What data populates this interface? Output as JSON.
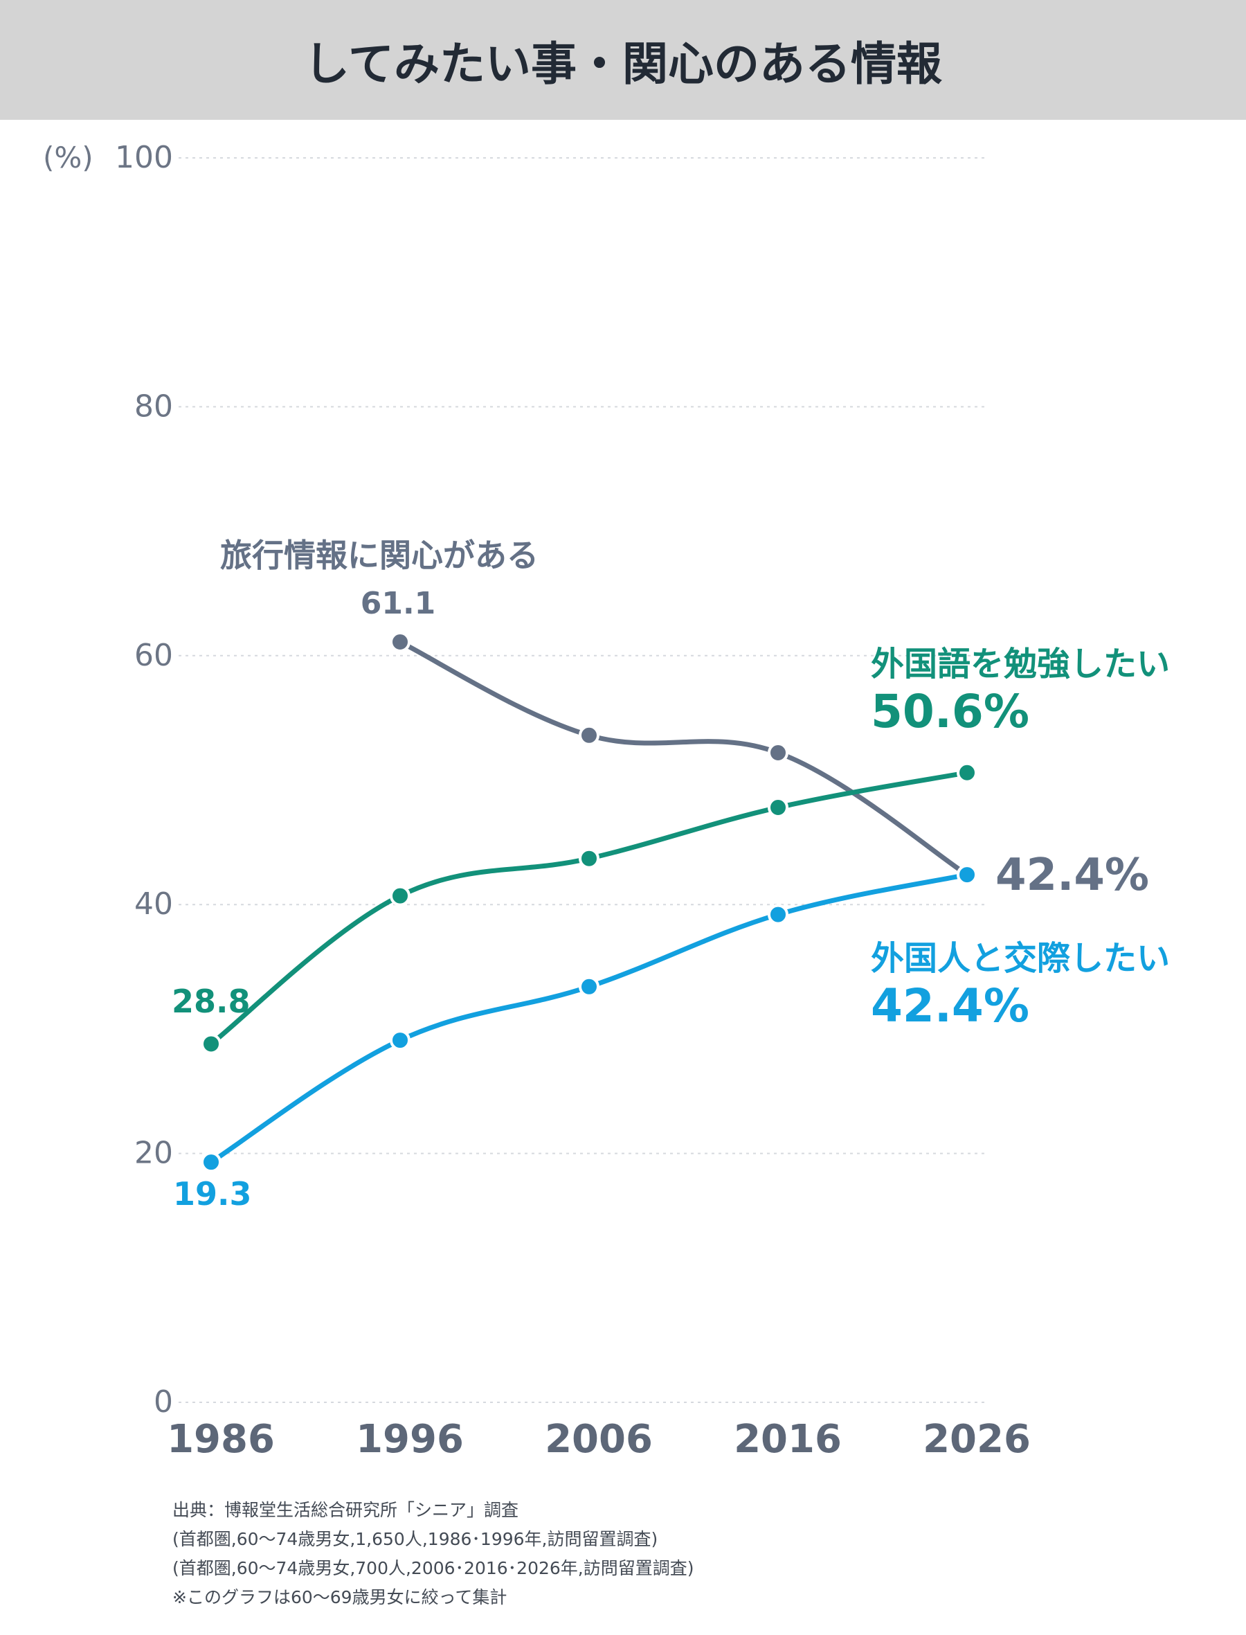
{
  "title": "してみたい事・関心のある情報",
  "chart_data": {
    "type": "line",
    "categories": [
      "1986",
      "1996",
      "2006",
      "2016",
      "2026"
    ],
    "ylim": [
      0,
      100
    ],
    "yticks": [
      "0",
      "20",
      "40",
      "60",
      "80",
      "100"
    ],
    "yunit": "(%)",
    "grid": true,
    "series": [
      {
        "name": "旅行情報に関心がある",
        "color": "#647186",
        "values": [
          null,
          61.1,
          53.6,
          52.2,
          42.4
        ],
        "start_label": "61.1",
        "end_label": "42.4%"
      },
      {
        "name": "外国語を勉強したい",
        "color": "#12917a",
        "values": [
          28.8,
          40.7,
          43.7,
          47.8,
          50.6
        ],
        "start_label": "28.8",
        "end_label": "50.6%"
      },
      {
        "name": "外国人と交際したい",
        "color": "#12a0df",
        "values": [
          19.3,
          29.1,
          33.4,
          39.2,
          42.4
        ],
        "start_label": "19.3",
        "end_label": "42.4%"
      }
    ]
  },
  "source": [
    "出典：博報堂生活総合研究所「シニア」調査",
    "(首都圏,60〜74歳男女,1,650人,1986･1996年,訪問留置調査)",
    "(首都圏,60〜74歳男女,700人,2006･2016･2026年,訪問留置調査)",
    "※このグラフは60〜69歳男女に絞って集計"
  ]
}
